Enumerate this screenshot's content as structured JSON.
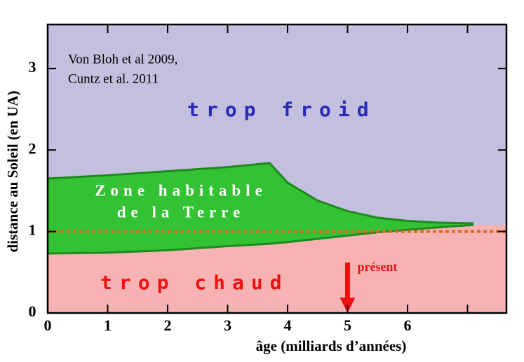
{
  "chart_data": {
    "type": "area",
    "x_label": "âge (milliards d’années)",
    "y_label": "distance au Soleil (en UA)",
    "xlim": [
      0,
      7.65
    ],
    "ylim": [
      0,
      3.54
    ],
    "xticks": [
      0,
      1,
      2,
      3,
      4,
      5,
      6,
      {
        "value": 7,
        "label": null
      }
    ],
    "yticks": [
      0,
      1,
      2,
      3
    ],
    "background_color": "#c2c0de",
    "hot_color": "#f7b3b3",
    "zone": {
      "color": "#33c233",
      "edge_color": "#1e8a1e",
      "x": [
        0,
        1,
        2,
        3,
        3.7,
        4,
        4.5,
        5,
        5.5,
        6,
        6.5,
        7.1
      ],
      "upper": [
        1.65,
        1.69,
        1.74,
        1.79,
        1.84,
        1.6,
        1.38,
        1.25,
        1.17,
        1.13,
        1.11,
        1.1
      ],
      "lower": [
        0.73,
        0.74,
        0.77,
        0.82,
        0.85,
        0.87,
        0.91,
        0.95,
        0.99,
        1.02,
        1.05,
        1.08
      ]
    },
    "reference_line": {
      "value": 1,
      "color": "#e0651e"
    },
    "present_arrow": {
      "x": 5,
      "from": 0.62,
      "to": 0,
      "color": "#ee1111",
      "label": "présent"
    },
    "annotations": {
      "source_1": "Von Bloh et al 2009,",
      "source_2": "Cuntz et al. 2011",
      "cold": "trop froid",
      "cold_color": "#2a2ab8",
      "hot": "trop chaud",
      "hot_color": "#ee1111",
      "zone_1": "Zone habitable",
      "zone_2": "de la Terre"
    }
  }
}
